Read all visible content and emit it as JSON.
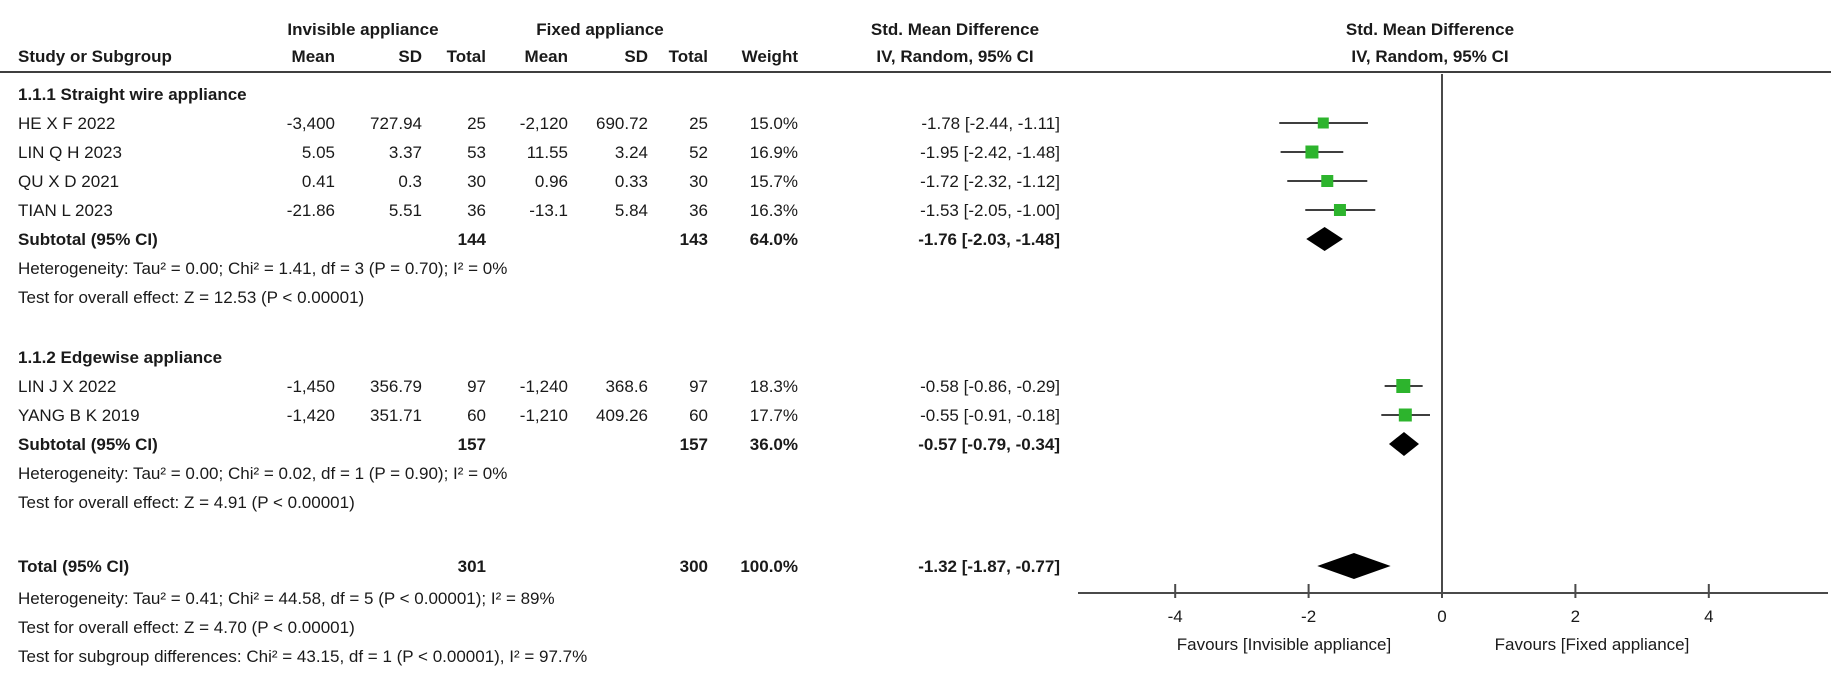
{
  "header": {
    "group1": "Invisible appliance",
    "group2": "Fixed appliance",
    "study_col": "Study or Subgroup",
    "cols": [
      "Mean",
      "SD",
      "Total",
      "Mean",
      "SD",
      "Total",
      "Weight"
    ],
    "effect_col_title": "Std. Mean Difference",
    "effect_col_sub": "IV, Random, 95% CI",
    "plot_title": "Std. Mean Difference",
    "plot_sub": "IV, Random, 95% CI"
  },
  "sections": [
    {
      "title": "1.1.1 Straight wire appliance",
      "studies": [
        {
          "name": "HE X F 2022",
          "mean1": "-3,400",
          "sd1": "727.94",
          "total1": "25",
          "mean2": "-2,120",
          "sd2": "690.72",
          "total2": "25",
          "weight": "15.0%",
          "ci_text": "-1.78 [-2.44, -1.11]"
        },
        {
          "name": "LIN Q H 2023",
          "mean1": "5.05",
          "sd1": "3.37",
          "total1": "53",
          "mean2": "11.55",
          "sd2": "3.24",
          "total2": "52",
          "weight": "16.9%",
          "ci_text": "-1.95 [-2.42, -1.48]"
        },
        {
          "name": "QU X D 2021",
          "mean1": "0.41",
          "sd1": "0.3",
          "total1": "30",
          "mean2": "0.96",
          "sd2": "0.33",
          "total2": "30",
          "weight": "15.7%",
          "ci_text": "-1.72 [-2.32, -1.12]"
        },
        {
          "name": "TIAN L 2023",
          "mean1": "-21.86",
          "sd1": "5.51",
          "total1": "36",
          "mean2": "-13.1",
          "sd2": "5.84",
          "total2": "36",
          "weight": "16.3%",
          "ci_text": "-1.53 [-2.05, -1.00]"
        }
      ],
      "subtotal": {
        "label": "Subtotal (95% CI)",
        "total1": "144",
        "total2": "143",
        "weight": "64.0%",
        "ci_text": "-1.76 [-2.03, -1.48]"
      },
      "heterogeneity": "Heterogeneity: Tau² = 0.00; Chi² = 1.41, df = 3 (P = 0.70); I² = 0%",
      "overall_effect": "Test for overall effect: Z = 12.53 (P < 0.00001)"
    },
    {
      "title": "1.1.2 Edgewise appliance",
      "studies": [
        {
          "name": "LIN J X 2022",
          "mean1": "-1,450",
          "sd1": "356.79",
          "total1": "97",
          "mean2": "-1,240",
          "sd2": "368.6",
          "total2": "97",
          "weight": "18.3%",
          "ci_text": "-0.58 [-0.86, -0.29]"
        },
        {
          "name": "YANG B K 2019",
          "mean1": "-1,420",
          "sd1": "351.71",
          "total1": "60",
          "mean2": "-1,210",
          "sd2": "409.26",
          "total2": "60",
          "weight": "17.7%",
          "ci_text": "-0.55 [-0.91, -0.18]"
        }
      ],
      "subtotal": {
        "label": "Subtotal (95% CI)",
        "total1": "157",
        "total2": "157",
        "weight": "36.0%",
        "ci_text": "-0.57 [-0.79, -0.34]"
      },
      "heterogeneity": "Heterogeneity: Tau² = 0.00; Chi² = 0.02, df = 1 (P = 0.90); I² = 0%",
      "overall_effect": "Test for overall effect: Z = 4.91 (P < 0.00001)"
    }
  ],
  "total": {
    "label": "Total (95% CI)",
    "total1": "301",
    "total2": "300",
    "weight": "100.0%",
    "ci_text": "-1.32 [-1.87, -0.77]"
  },
  "footer": {
    "heterogeneity": "Heterogeneity: Tau² = 0.41; Chi² = 44.58, df = 5 (P < 0.00001); I² = 89%",
    "overall_effect": "Test for overall effect: Z = 4.70 (P < 0.00001)",
    "subgroup_diff": "Test for subgroup differences: Chi² = 43.15, df = 1 (P < 0.00001), I² = 97.7%"
  },
  "axis": {
    "ticks": [
      "-4",
      "-2",
      "0",
      "2",
      "4"
    ],
    "favours_left": "Favours [Invisible appliance]",
    "favours_right": "Favours [Fixed appliance]"
  },
  "colors": {
    "square_green": "#2db42d",
    "diamond_black": "#000000",
    "line_dark": "#3f3f3f",
    "axis_gray": "#4a4a4a"
  },
  "chart_data": {
    "type": "scatter",
    "variant": "forest-plot-meta-analysis",
    "effect_measure": "Std. Mean Difference",
    "method": "IV, Random, 95% CI",
    "axis_ticks": [
      -4,
      -2,
      0,
      2,
      4
    ],
    "xlim_visible": [
      -5.5,
      5.8
    ],
    "null_line": 0,
    "favours_left": "Favours [Invisible appliance]",
    "favours_right": "Favours [Fixed appliance]",
    "groups": [
      {
        "name": "1.1.1 Straight wire appliance",
        "studies": [
          {
            "name": "HE X F 2022",
            "est": -1.78,
            "lo": -2.44,
            "hi": -1.11,
            "weight_pct": 15.0
          },
          {
            "name": "LIN Q H 2023",
            "est": -1.95,
            "lo": -2.42,
            "hi": -1.48,
            "weight_pct": 16.9
          },
          {
            "name": "QU X D 2021",
            "est": -1.72,
            "lo": -2.32,
            "hi": -1.12,
            "weight_pct": 15.7
          },
          {
            "name": "TIAN L 2023",
            "est": -1.53,
            "lo": -2.05,
            "hi": -1.0,
            "weight_pct": 16.3
          }
        ],
        "subtotal": {
          "est": -1.76,
          "lo": -2.03,
          "hi": -1.48,
          "weight_pct": 64.0
        }
      },
      {
        "name": "1.1.2 Edgewise appliance",
        "studies": [
          {
            "name": "LIN J X 2022",
            "est": -0.58,
            "lo": -0.86,
            "hi": -0.29,
            "weight_pct": 18.3
          },
          {
            "name": "YANG B K 2019",
            "est": -0.55,
            "lo": -0.91,
            "hi": -0.18,
            "weight_pct": 17.7
          }
        ],
        "subtotal": {
          "est": -0.57,
          "lo": -0.79,
          "hi": -0.34,
          "weight_pct": 36.0
        }
      }
    ],
    "total": {
      "est": -1.32,
      "lo": -1.87,
      "hi": -0.77,
      "weight_pct": 100.0
    }
  }
}
